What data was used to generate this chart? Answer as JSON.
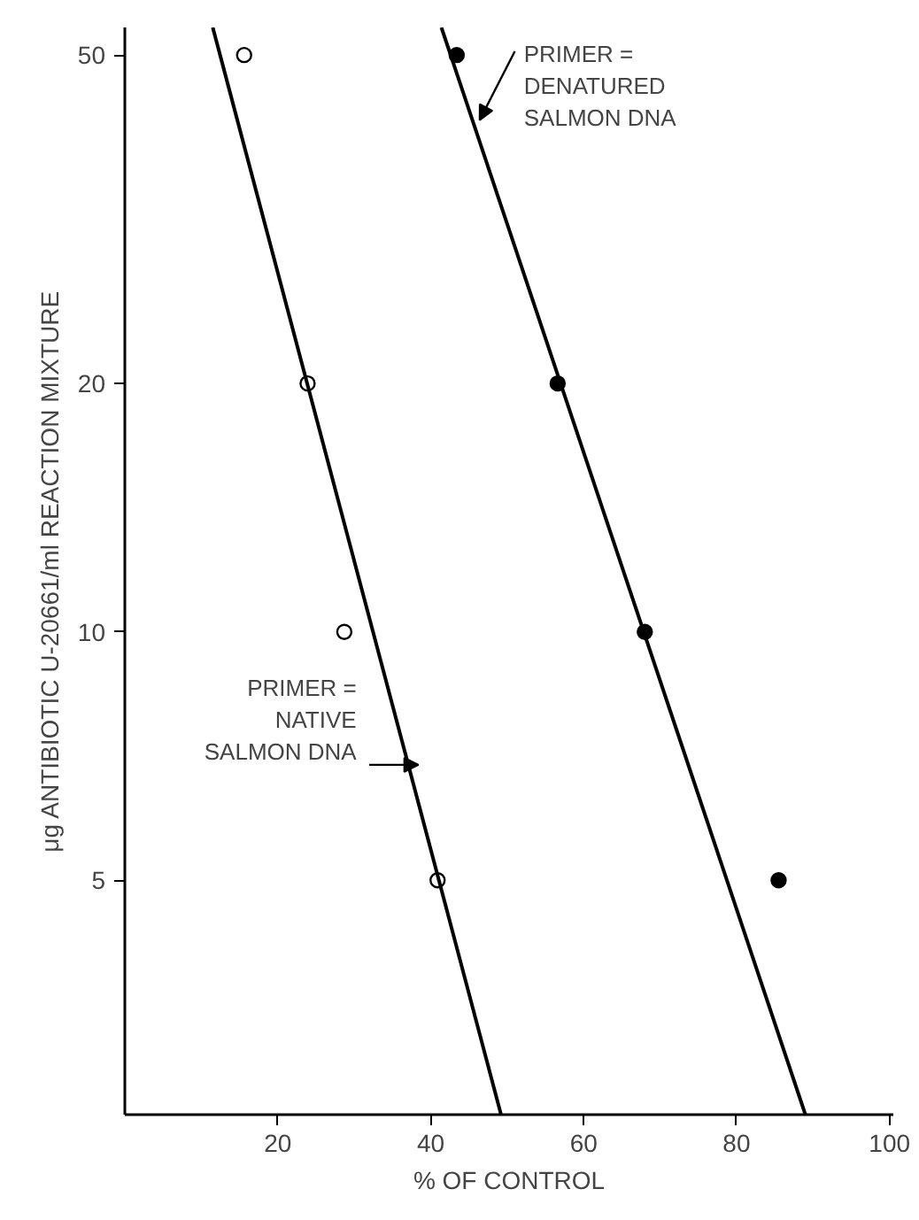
{
  "chart_data": {
    "type": "scatter",
    "xlabel": "% OF CONTROL",
    "ylabel": "μg ANTIBIOTIC U-20661/ml REACTION MIXTURE",
    "log": "y",
    "xlim": [
      0,
      100.5
    ],
    "ylim": [
      2.6,
      54
    ],
    "xticks": [
      20,
      40,
      60,
      80,
      100
    ],
    "yticks": [
      5,
      10,
      20,
      50
    ],
    "grid": false,
    "series": [
      {
        "marker": "circle",
        "color": "#ffffff",
        "x": [
          15.6,
          23.9,
          28.7,
          40.9
        ],
        "values": [
          50,
          20,
          10,
          5
        ]
      },
      {
        "marker": "circle",
        "color": "#000000",
        "x": [
          43.4,
          56.6,
          68,
          85.5
        ],
        "values": [
          50,
          20,
          10,
          5
        ]
      },
      {
        "type": "line",
        "color": "#000000",
        "x": [
          11.5,
          49.2
        ],
        "values": [
          54,
          2.6
        ]
      },
      {
        "type": "line",
        "color": "#000000",
        "x": [
          41.4,
          89
        ],
        "values": [
          54,
          2.6
        ]
      }
    ],
    "annotations": [
      {
        "text": "PRIMER =\nDENATURED\nSALMON DNA",
        "x": 46.4,
        "y": 41.7
      },
      {
        "text": "PRIMER =\nNATIVE\nSALMON DNA",
        "x": 38.4,
        "y": 6.9
      }
    ]
  }
}
